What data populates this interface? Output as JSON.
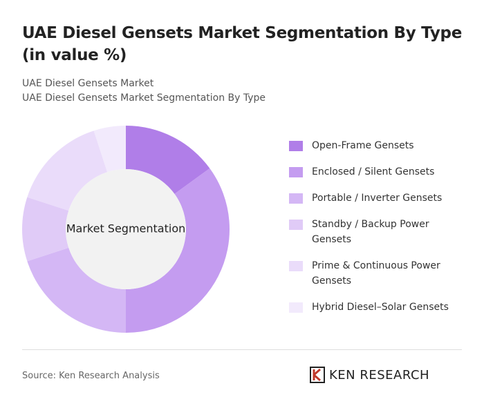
{
  "chart_data": {
    "type": "donut",
    "title": "UAE Diesel Gensets Market Segmentation By Type (in value %)",
    "subtitles": [
      "UAE Diesel Gensets Market",
      "UAE Diesel Gensets Market Segmentation By Type"
    ],
    "center_label": "Market Segmentation",
    "categories": [
      "Open-Frame Gensets",
      "Enclosed / Silent Gensets",
      "Portable / Inverter Gensets",
      "Standby / Backup Power Gensets",
      "Prime & Continuous Power Gensets",
      "Hybrid Diesel–Solar Gensets"
    ],
    "values": [
      15,
      35,
      20,
      10,
      15,
      5
    ],
    "colors": [
      "#b07ee8",
      "#c49cf0",
      "#d4b7f5",
      "#e0cbf7",
      "#eadcfa",
      "#f2eafc"
    ],
    "source": "Source: Ken Research Analysis",
    "brand": "KEN RESEARCH"
  }
}
